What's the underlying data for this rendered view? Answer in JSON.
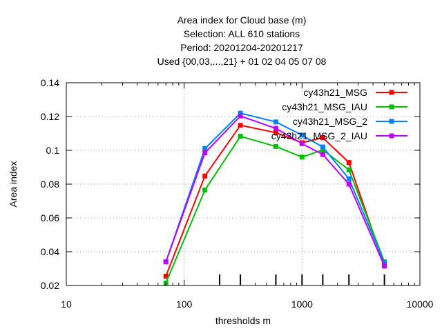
{
  "chart_data": {
    "type": "line",
    "title_lines": [
      "Area index  for Cloud base (m)",
      "Selection: ALL    610 stations",
      "Period: 20201204-20201217",
      "Used {00,03,...,21} + 01 02 04 05 07 08"
    ],
    "xlabel": "thresholds m",
    "ylabel": "Area index",
    "xscale": "log",
    "xlim": [
      10,
      10000
    ],
    "ylim": [
      0.02,
      0.14
    ],
    "xticks": [
      10,
      100,
      1000,
      10000
    ],
    "xtick_labels": [
      "10",
      "100",
      "1000",
      "10000"
    ],
    "yticks": [
      0.02,
      0.04,
      0.06,
      0.08,
      0.1,
      0.12,
      0.14
    ],
    "ytick_labels": [
      "0.02",
      "0.04",
      "0.06",
      "0.08",
      "0.1",
      "0.12",
      "0.14"
    ],
    "grid": true,
    "legend_position": "top-right",
    "x": [
      70,
      150,
      300,
      600,
      1000,
      1500,
      2500,
      5000
    ],
    "series": [
      {
        "name": "cy43h21_MSG",
        "color": "#ff0000",
        "values": [
          0.0255,
          0.0848,
          0.1148,
          0.1105,
          0.1045,
          0.1075,
          0.0928,
          0.032
        ]
      },
      {
        "name": "cy43h21_MSG_IAU",
        "color": "#00c000",
        "values": [
          0.0215,
          0.0765,
          0.1083,
          0.1023,
          0.096,
          0.1002,
          0.0885,
          0.034
        ]
      },
      {
        "name": "cy43h21_MSG_2",
        "color": "#0080ff",
        "values": [
          0.034,
          0.101,
          0.122,
          0.1168,
          0.109,
          0.102,
          0.0832,
          0.0335
        ]
      },
      {
        "name": "cy43h21_MSG_2_IAU",
        "color": "#c000ff",
        "values": [
          0.034,
          0.0985,
          0.1203,
          0.113,
          0.104,
          0.0975,
          0.08,
          0.0315
        ]
      }
    ],
    "threshold_markers": [
      200,
      300,
      600,
      1000,
      1500,
      2500,
      5000
    ]
  }
}
